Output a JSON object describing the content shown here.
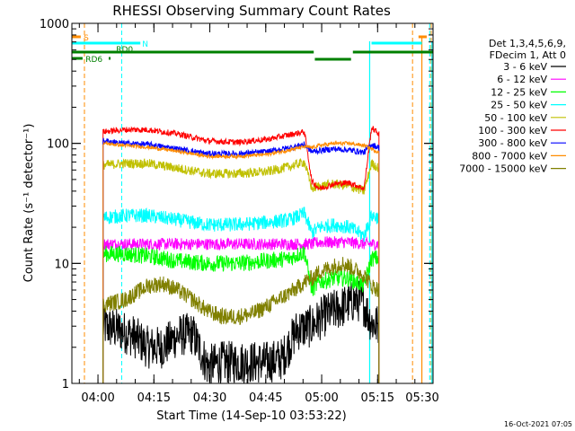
{
  "chart_data": {
    "type": "line",
    "title": "RHESSI Observing Summary Count Rates",
    "xlabel": "Start Time (14-Sep-10 03:53:22)",
    "ylabel": "Count Rate (s⁻¹ detector⁻¹)",
    "yscale": "log",
    "ylim": [
      1,
      1000
    ],
    "xlim_minutes": [
      -0.37,
      96.5
    ],
    "x_ticks": [
      {
        "label": "04:00",
        "minute": 6.63
      },
      {
        "label": "04:15",
        "minute": 21.63
      },
      {
        "label": "04:30",
        "minute": 36.63
      },
      {
        "label": "04:45",
        "minute": 51.63
      },
      {
        "label": "05:00",
        "minute": 66.63
      },
      {
        "label": "05:15",
        "minute": 81.63
      },
      {
        "label": "05:30",
        "minute": 96.63
      }
    ],
    "y_ticks": [
      {
        "label": "1",
        "value": 1
      },
      {
        "label": "10",
        "value": 10
      },
      {
        "label": "100",
        "value": 100
      },
      {
        "label": "1000",
        "value": 1000
      }
    ],
    "legend": {
      "placement": "right",
      "header": [
        "Det 1,3,4,5,6,9,",
        "FDecim 1, Att 0"
      ]
    },
    "series": [
      {
        "name": "3 - 6 keV",
        "color": "#000000",
        "x": [
          8,
          12,
          16,
          20,
          24,
          28,
          32,
          36,
          40,
          44,
          48,
          52,
          56,
          60,
          64,
          66,
          68,
          72,
          76,
          78,
          80,
          82
        ],
        "values": [
          3,
          2.8,
          2.5,
          2,
          2,
          2.5,
          2.6,
          1.4,
          1.5,
          1.5,
          1.5,
          1.5,
          1.6,
          2.8,
          3,
          3.4,
          3.8,
          4.3,
          5,
          4.5,
          3.2,
          3
        ]
      },
      {
        "name": "6 - 12 keV",
        "color": "#ff00ff",
        "x": [
          8,
          20,
          32,
          44,
          56,
          62,
          64,
          66,
          70,
          74,
          78,
          82
        ],
        "values": [
          14.5,
          14.5,
          14.5,
          14.5,
          14.5,
          14.5,
          14.5,
          15,
          15,
          15,
          14.5,
          14.5
        ]
      },
      {
        "name": "12 - 25 keV",
        "color": "#00ff00",
        "x": [
          8,
          14,
          20,
          28,
          36,
          44,
          52,
          58,
          62,
          64,
          66,
          70,
          74,
          78,
          80,
          82
        ],
        "values": [
          12,
          12,
          11.5,
          10.5,
          10,
          10,
          10.5,
          11,
          12.5,
          6,
          7,
          7.5,
          7.5,
          6.5,
          11,
          11
        ]
      },
      {
        "name": "25 - 50 keV",
        "color": "#00ffff",
        "x": [
          8,
          14,
          20,
          28,
          36,
          44,
          52,
          58,
          62,
          64,
          66,
          70,
          74,
          78,
          80,
          82
        ],
        "values": [
          24,
          25,
          25,
          23,
          21,
          21,
          22,
          23,
          26,
          18,
          20,
          21,
          20,
          17,
          25,
          24
        ]
      },
      {
        "name": "50 - 100 keV",
        "color": "#c0c000",
        "x": [
          8,
          14,
          20,
          28,
          36,
          44,
          52,
          58,
          62,
          64,
          66,
          70,
          74,
          78,
          80,
          82
        ],
        "values": [
          66,
          68,
          68,
          62,
          56,
          56,
          58,
          64,
          70,
          42,
          44,
          46,
          44,
          40,
          68,
          62
        ]
      },
      {
        "name": "100 - 300 keV",
        "color": "#ff0000",
        "x": [
          8,
          14,
          20,
          28,
          36,
          44,
          52,
          58,
          62,
          64,
          66,
          70,
          74,
          78,
          80,
          82
        ],
        "values": [
          125,
          130,
          130,
          120,
          105,
          102,
          108,
          118,
          125,
          48,
          42,
          46,
          47,
          42,
          135,
          120
        ]
      },
      {
        "name": "300 - 800 keV",
        "color": "#0000ff",
        "x": [
          8,
          14,
          20,
          28,
          36,
          44,
          52,
          58,
          62,
          64,
          66,
          70,
          74,
          78,
          80,
          82
        ],
        "values": [
          105,
          100,
          98,
          90,
          82,
          82,
          85,
          92,
          98,
          85,
          87,
          90,
          88,
          84,
          98,
          92
        ]
      },
      {
        "name": "800 - 7000 keV",
        "color": "#ff8c00",
        "x": [
          8,
          14,
          20,
          28,
          36,
          44,
          52,
          58,
          62,
          64,
          66,
          70,
          74,
          78,
          80,
          82
        ],
        "values": [
          100,
          96,
          93,
          86,
          78,
          78,
          81,
          88,
          94,
          92,
          96,
          100,
          100,
          96,
          90,
          84
        ]
      },
      {
        "name": "7000 - 15000 keV",
        "color": "#808000",
        "x": [
          8,
          14,
          20,
          24,
          28,
          32,
          36,
          40,
          44,
          48,
          52,
          56,
          60,
          62,
          64,
          66,
          70,
          72,
          74,
          78,
          80,
          82
        ],
        "values": [
          4.5,
          5,
          6.5,
          6.8,
          6,
          5,
          4,
          3.6,
          3.6,
          3.8,
          4.4,
          5.2,
          6.2,
          7,
          7.5,
          8.5,
          9.5,
          10,
          9.5,
          8,
          6.5,
          6
        ]
      }
    ],
    "annotations": {
      "saa": {
        "label": "S",
        "color": "#ff8c00",
        "start_min": 92.6,
        "end_min": 94.8
      },
      "night": {
        "label": "N",
        "color": "#00ffff"
      },
      "flags": [
        {
          "label": "RD0",
          "color": "#008000"
        },
        {
          "label": "RD6",
          "color": "#008000"
        }
      ]
    },
    "grid": false
  },
  "footer": {
    "timestamp": "16-Oct-2021 07:05"
  }
}
